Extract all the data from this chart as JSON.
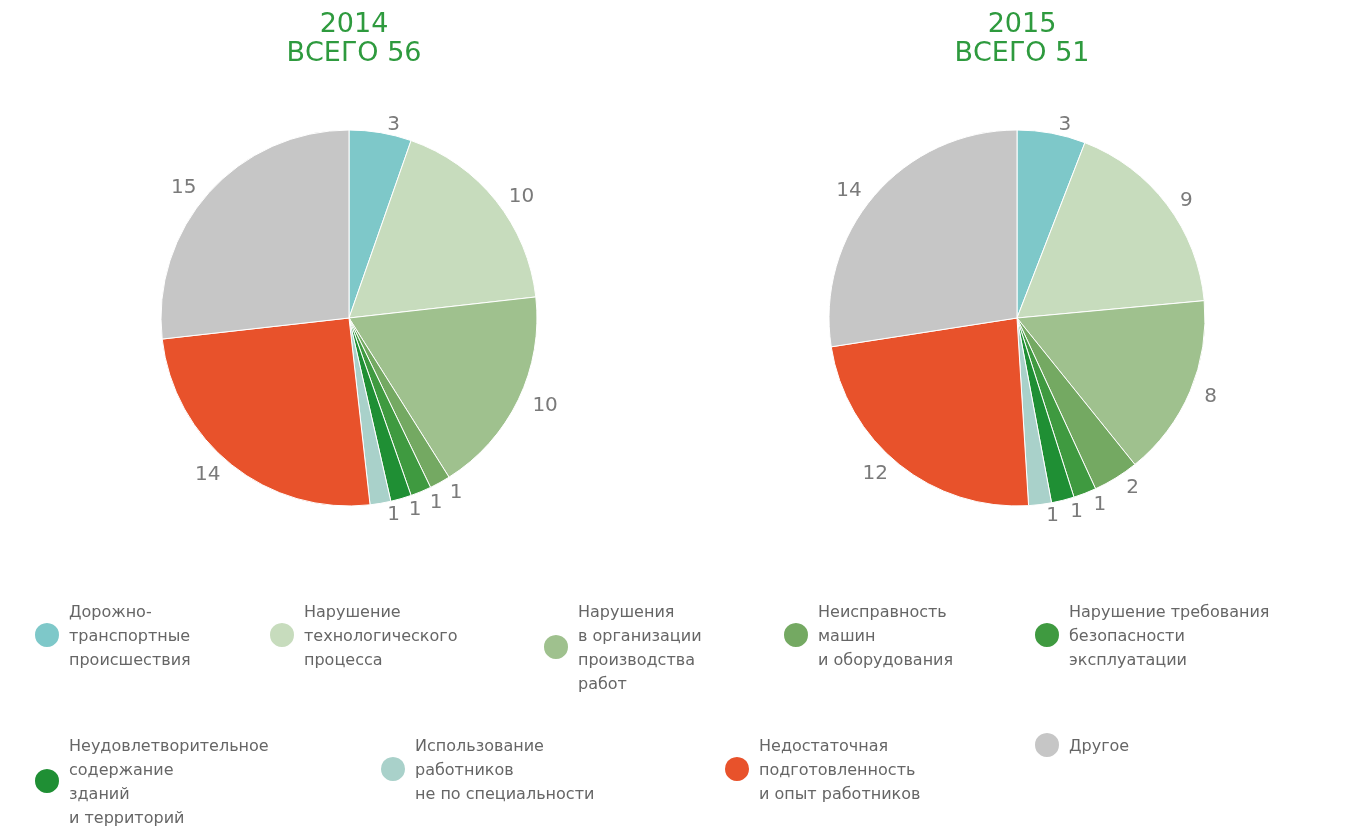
{
  "chart_data": [
    {
      "type": "pie",
      "title": "2014",
      "subtitle": "ВСЕГО 56",
      "legend": "bottom",
      "data_labels": true,
      "categories": [
        "Дорожно-\nтранспортные\nпроисшествия",
        "Нарушение\nтехнологического\nпроцесса",
        "Нарушения\nв организации\nпроизводства\nработ",
        "Неисправность\nмашин\nи оборудования",
        "Нарушение требования\nбезопасности\nэксплуатации",
        "Неудовлетворительное\nсодержание\nзданий\nи территорий",
        "Использование\nработников\nне по специальности",
        "Недостаточная\nподготовленность\nи опыт работников",
        "Другое"
      ],
      "values": [
        3,
        10,
        10,
        1,
        1,
        1,
        1,
        14,
        15
      ],
      "colors": [
        "#7ec8c9",
        "#c7dcbd",
        "#9fc18e",
        "#74a962",
        "#3f9a40",
        "#1f8f34",
        "#a9d1ca",
        "#e8522b",
        "#c6c6c6"
      ]
    },
    {
      "type": "pie",
      "title": "2015",
      "subtitle": "ВСЕГО 51",
      "legend": false,
      "data_labels": true,
      "categories": [
        null,
        null,
        null,
        null,
        null,
        null,
        null,
        null,
        null
      ],
      "values": [
        3,
        9,
        8,
        2,
        1,
        1,
        1,
        12,
        14
      ],
      "colors": [
        "#7ec8c9",
        "#c7dcbd",
        "#9fc18e",
        "#74a962",
        "#3f9a40",
        "#1f8f34",
        "#a9d1ca",
        "#e8522b",
        "#c6c6c6"
      ]
    }
  ]
}
